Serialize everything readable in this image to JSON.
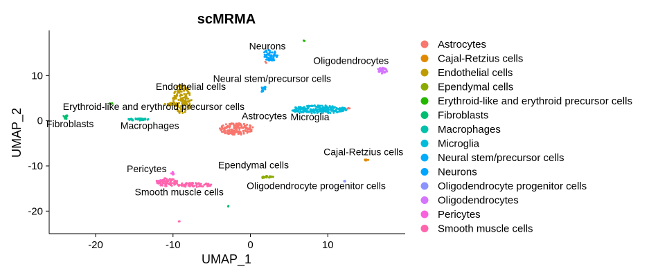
{
  "chart_data": {
    "type": "scatter",
    "title": "scMRMA",
    "xlabel": "UMAP_1",
    "ylabel": "UMAP_2",
    "xlim": [
      -26,
      20
    ],
    "ylim": [
      -25,
      20
    ],
    "xticks": [
      -20,
      -10,
      0,
      10
    ],
    "yticks": [
      -20,
      -10,
      0,
      10
    ],
    "grid": false,
    "legend_position": "right",
    "series": [
      {
        "name": "Astrocytes",
        "color": "#F8766D",
        "clusters": [
          {
            "cx": -1.8,
            "cy": -1.8,
            "rx": 2.2,
            "ry": 1.3,
            "n": 170
          },
          {
            "cx": 12.7,
            "cy": 2.8,
            "rx": 0.2,
            "ry": 0.2,
            "n": 3
          },
          {
            "cx": 2.0,
            "cy": 13.0,
            "rx": 0.2,
            "ry": 0.2,
            "n": 2
          }
        ],
        "label": {
          "text": "Astrocytes",
          "x": 1.8,
          "y": 0.3
        }
      },
      {
        "name": "Cajal-Retzius cells",
        "color": "#E18A00",
        "clusters": [
          {
            "cx": 15.0,
            "cy": -8.7,
            "rx": 0.25,
            "ry": 0.2,
            "n": 8
          }
        ],
        "label": {
          "text": "Cajal-Retzius cells",
          "x": 14.6,
          "y": -7.6
        }
      },
      {
        "name": "Endothelial cells",
        "color": "#BE9C00",
        "clusters": [
          {
            "cx": -8.8,
            "cy": 4.8,
            "rx": 1.2,
            "ry": 3.3,
            "n": 150
          },
          {
            "cx": -10.3,
            "cy": 3.8,
            "rx": 0.8,
            "ry": 0.5,
            "n": 20
          }
        ],
        "label": {
          "text": "Endothelial cells",
          "x": -7.7,
          "y": 6.8
        }
      },
      {
        "name": "Ependymal cells",
        "color": "#8CAB00",
        "clusters": [
          {
            "cx": 2.2,
            "cy": -12.5,
            "rx": 0.8,
            "ry": 0.3,
            "n": 25
          }
        ],
        "label": {
          "text": "Ependymal cells",
          "x": 0.4,
          "y": -10.5
        }
      },
      {
        "name": "Erythroid-like and erythroid precursor cells",
        "color": "#24B700",
        "clusters": [
          {
            "cx": -18.0,
            "cy": 3.8,
            "rx": 0.2,
            "ry": 0.3,
            "n": 6
          },
          {
            "cx": 7.0,
            "cy": 17.8,
            "rx": 0.15,
            "ry": 0.15,
            "n": 3
          }
        ],
        "label": {
          "text": "Erythroid-like and erythroid precursor cells",
          "x": -12.5,
          "y": 2.4
        }
      },
      {
        "name": "Fibroblasts",
        "color": "#00BE70",
        "clusters": [
          {
            "cx": -23.9,
            "cy": 0.8,
            "rx": 0.3,
            "ry": 0.7,
            "n": 15
          },
          {
            "cx": -2.8,
            "cy": -19.0,
            "rx": 0.15,
            "ry": 0.15,
            "n": 2
          }
        ],
        "label": {
          "text": "Fibroblasts",
          "x": -23.3,
          "y": -1.4
        }
      },
      {
        "name": "Macrophages",
        "color": "#00C1AB",
        "clusters": [
          {
            "cx": -14.5,
            "cy": 0.3,
            "rx": 1.5,
            "ry": 0.25,
            "n": 35
          }
        ],
        "label": {
          "text": "Macrophages",
          "x": -13.0,
          "y": -1.8
        }
      },
      {
        "name": "Microglia",
        "color": "#00BBDA",
        "clusters": [
          {
            "cx": 8.8,
            "cy": 2.5,
            "rx": 3.7,
            "ry": 0.9,
            "n": 220
          }
        ],
        "label": {
          "text": "Microglia",
          "x": 7.7,
          "y": 0.1
        }
      },
      {
        "name": "Neural stem/precursor cells",
        "color": "#00ACFC",
        "clusters": [
          {
            "cx": 1.7,
            "cy": 7.0,
            "rx": 0.35,
            "ry": 0.8,
            "n": 15
          }
        ],
        "label": {
          "text": "Neural stem/precursor cells",
          "x": 2.8,
          "y": 8.6
        }
      },
      {
        "name": "Neurons",
        "color": "#00A5FF",
        "clusters": [
          {
            "cx": 2.6,
            "cy": 14.5,
            "rx": 1.0,
            "ry": 1.3,
            "n": 70
          }
        ],
        "label": {
          "text": "Neurons",
          "x": 2.2,
          "y": 15.8
        }
      },
      {
        "name": "Oligodendrocyte progenitor cells",
        "color": "#8B93FF",
        "clusters": [
          {
            "cx": 12.2,
            "cy": -13.3,
            "rx": 0.2,
            "ry": 0.2,
            "n": 5
          }
        ],
        "label": {
          "text": "Oligodendrocyte progenitor cells",
          "x": 8.5,
          "y": -15.1
        }
      },
      {
        "name": "Oligodendrocytes",
        "color": "#D575FE",
        "clusters": [
          {
            "cx": 17.0,
            "cy": 11.0,
            "rx": 0.7,
            "ry": 0.8,
            "n": 35
          }
        ],
        "label": {
          "text": "Oligodendrocytes",
          "x": 13.0,
          "y": 12.6
        }
      },
      {
        "name": "Pericytes",
        "color": "#F962DD",
        "clusters": [
          {
            "cx": -10.0,
            "cy": -11.8,
            "rx": 0.25,
            "ry": 0.5,
            "n": 6
          },
          {
            "cx": -11.8,
            "cy": -13.5,
            "rx": 0.4,
            "ry": 0.4,
            "n": 10
          }
        ],
        "label": {
          "text": "Pericytes",
          "x": -13.4,
          "y": -11.4
        }
      },
      {
        "name": "Smooth muscle cells",
        "color": "#FF65AC",
        "clusters": [
          {
            "cx": -10.8,
            "cy": -13.6,
            "rx": 1.4,
            "ry": 0.9,
            "n": 80
          },
          {
            "cx": -7.2,
            "cy": -14.2,
            "rx": 2.3,
            "ry": 0.5,
            "n": 70
          },
          {
            "cx": -9.2,
            "cy": -22.3,
            "rx": 0.1,
            "ry": 0.1,
            "n": 2
          }
        ],
        "label": {
          "text": "Smooth muscle cells",
          "x": -9.2,
          "y": -16.5
        }
      }
    ]
  }
}
